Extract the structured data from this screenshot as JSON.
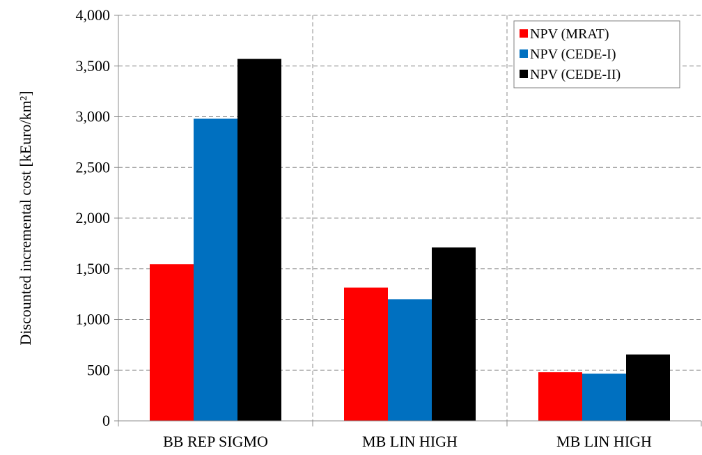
{
  "chart_data": {
    "type": "bar",
    "categories": [
      "BB REP SIGMO",
      "MB LIN HIGH",
      "MB LIN HIGH"
    ],
    "series": [
      {
        "name": "NPV (MRAT)",
        "color": "#ff0000",
        "values": [
          1545,
          1315,
          480
        ]
      },
      {
        "name": "NPV (CEDE-I)",
        "color": "#0070c0",
        "values": [
          2980,
          1200,
          465
        ]
      },
      {
        "name": "NPV (CEDE-II)",
        "color": "#000000",
        "values": [
          3570,
          1710,
          655
        ]
      }
    ],
    "title": "",
    "xlabel": "",
    "ylabel": "Discounted incremental cost [kEuro/km²]",
    "ylim": [
      0,
      4000
    ],
    "yticks": [
      0,
      500,
      1000,
      1500,
      2000,
      2500,
      3000,
      3500,
      4000
    ],
    "ytick_labels": [
      "0",
      "500",
      "1,000",
      "1,500",
      "2,000",
      "2,500",
      "3,000",
      "3,500",
      "4,000"
    ],
    "grid": "dashed horizontal and vertical",
    "legend_position": "top-right"
  }
}
